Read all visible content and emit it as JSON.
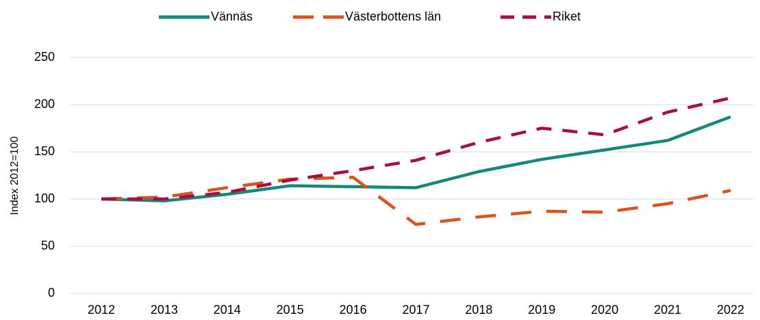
{
  "chart_data": {
    "type": "line",
    "y_label": "Index 2012=100",
    "categories": [
      "2012",
      "2013",
      "2014",
      "2015",
      "2016",
      "2017",
      "2018",
      "2019",
      "2020",
      "2021",
      "2022"
    ],
    "series": [
      {
        "name": "Vännäs",
        "color": "#14897a",
        "dash": "solid",
        "values": [
          100,
          98,
          105,
          114,
          113,
          112,
          129,
          142,
          152,
          162,
          187
        ]
      },
      {
        "name": "Västerbottens län",
        "color": "#d9531e",
        "dash": "long",
        "values": [
          100,
          102,
          112,
          121,
          123,
          73,
          81,
          87,
          86,
          95,
          109
        ]
      },
      {
        "name": "Riket",
        "color": "#a50f45",
        "dash": "medium",
        "values": [
          100,
          100,
          107,
          120,
          130,
          141,
          160,
          175,
          168,
          192,
          207
        ]
      }
    ],
    "ylim": [
      0,
      250
    ],
    "yticks": [
      0,
      50,
      100,
      150,
      200,
      250
    ],
    "grid": true,
    "legend": "top"
  }
}
